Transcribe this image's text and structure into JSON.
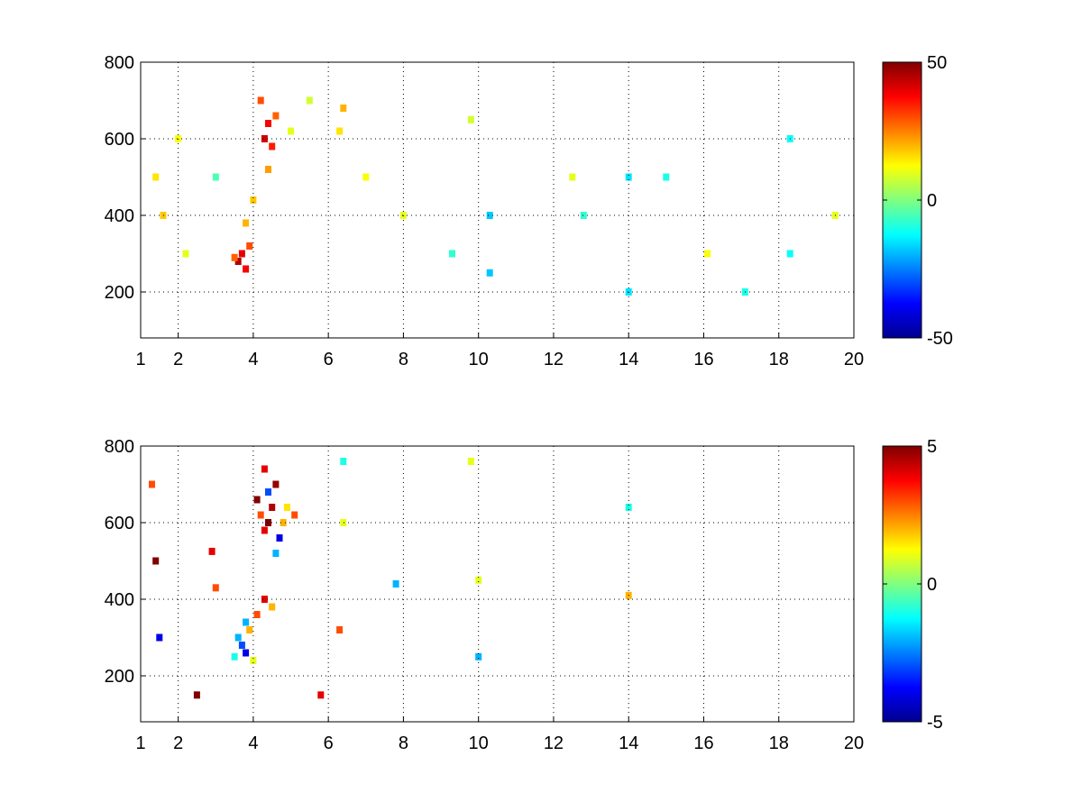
{
  "chart_data": [
    {
      "type": "heatmap",
      "title": "",
      "xlabel": "",
      "ylabel": "",
      "xlim": [
        1,
        20
      ],
      "ylim": [
        80,
        800
      ],
      "xticks": [
        1,
        2,
        4,
        6,
        8,
        10,
        12,
        14,
        16,
        18,
        20
      ],
      "yticks": [
        200,
        400,
        600,
        800
      ],
      "grid": true,
      "colormap": "jet",
      "clim": [
        -50,
        50
      ],
      "colorbar_ticks": [
        -50,
        0,
        50
      ],
      "note_values": "sparse scattered cell values; strongest positive cluster near x 3.5-5, y 250-700",
      "cells": [
        [
          3.6,
          280,
          45
        ],
        [
          3.7,
          300,
          40
        ],
        [
          3.8,
          260,
          38
        ],
        [
          3.9,
          320,
          30
        ],
        [
          3.5,
          290,
          28
        ],
        [
          4.3,
          600,
          42
        ],
        [
          4.4,
          640,
          38
        ],
        [
          4.5,
          580,
          35
        ],
        [
          4.2,
          700,
          30
        ],
        [
          4.6,
          660,
          28
        ],
        [
          4.4,
          520,
          22
        ],
        [
          3.8,
          380,
          20
        ],
        [
          4.0,
          440,
          18
        ],
        [
          5.0,
          620,
          10
        ],
        [
          5.5,
          700,
          8
        ],
        [
          6.4,
          680,
          20
        ],
        [
          6.3,
          620,
          15
        ],
        [
          10.3,
          400,
          -18
        ],
        [
          10.3,
          250,
          -18
        ],
        [
          14.0,
          500,
          -15
        ],
        [
          14.0,
          200,
          -15
        ],
        [
          18.3,
          600,
          -12
        ],
        [
          18.3,
          300,
          -12
        ],
        [
          1.4,
          500,
          15
        ],
        [
          1.6,
          400,
          18
        ],
        [
          2.0,
          600,
          12
        ],
        [
          2.2,
          300,
          10
        ],
        [
          3.0,
          500,
          -5
        ],
        [
          7.0,
          500,
          12
        ],
        [
          8.0,
          400,
          10
        ],
        [
          9.3,
          300,
          -8
        ],
        [
          9.8,
          650,
          8
        ],
        [
          12.5,
          500,
          10
        ],
        [
          12.8,
          400,
          -8
        ],
        [
          15.0,
          500,
          -10
        ],
        [
          16.1,
          300,
          12
        ],
        [
          17.1,
          200,
          -10
        ],
        [
          19.5,
          400,
          10
        ]
      ]
    },
    {
      "type": "heatmap",
      "title": "",
      "xlabel": "",
      "ylabel": "",
      "xlim": [
        1,
        20
      ],
      "ylim": [
        80,
        800
      ],
      "xticks": [
        1,
        2,
        4,
        6,
        8,
        10,
        12,
        14,
        16,
        18,
        20
      ],
      "yticks": [
        200,
        400,
        600,
        800
      ],
      "grid": true,
      "colormap": "jet",
      "clim": [
        -5,
        5
      ],
      "colorbar_ticks": [
        -5,
        0,
        5
      ],
      "cells": [
        [
          4.4,
          600,
          5
        ],
        [
          4.5,
          640,
          4.5
        ],
        [
          4.3,
          580,
          4
        ],
        [
          4.6,
          700,
          4.8
        ],
        [
          4.2,
          620,
          3
        ],
        [
          4.7,
          560,
          -4
        ],
        [
          4.4,
          680,
          -3
        ],
        [
          4.8,
          600,
          2
        ],
        [
          4.1,
          660,
          5
        ],
        [
          4.9,
          640,
          1.5
        ],
        [
          4.3,
          740,
          4
        ],
        [
          4.6,
          520,
          -2
        ],
        [
          3.7,
          280,
          -3
        ],
        [
          3.8,
          260,
          -4
        ],
        [
          3.6,
          300,
          -2
        ],
        [
          3.9,
          320,
          2
        ],
        [
          4.1,
          360,
          3
        ],
        [
          4.3,
          400,
          4
        ],
        [
          4.5,
          380,
          2
        ],
        [
          3.5,
          250,
          -1
        ],
        [
          4.0,
          240,
          1
        ],
        [
          3.8,
          340,
          -2
        ],
        [
          6.4,
          760,
          -1
        ],
        [
          6.4,
          600,
          1
        ],
        [
          6.3,
          320,
          3
        ],
        [
          5.8,
          150,
          4
        ],
        [
          1.4,
          500,
          5
        ],
        [
          1.5,
          300,
          -4
        ],
        [
          1.3,
          700,
          3
        ],
        [
          10.0,
          250,
          -2
        ],
        [
          10.0,
          450,
          1
        ],
        [
          14.0,
          410,
          2
        ],
        [
          14.0,
          640,
          -1
        ],
        [
          7.8,
          440,
          -2
        ],
        [
          9.8,
          760,
          1
        ],
        [
          5.1,
          620,
          3
        ],
        [
          2.9,
          525,
          4
        ],
        [
          2.5,
          150,
          5
        ],
        [
          3.0,
          430,
          3
        ]
      ]
    }
  ]
}
